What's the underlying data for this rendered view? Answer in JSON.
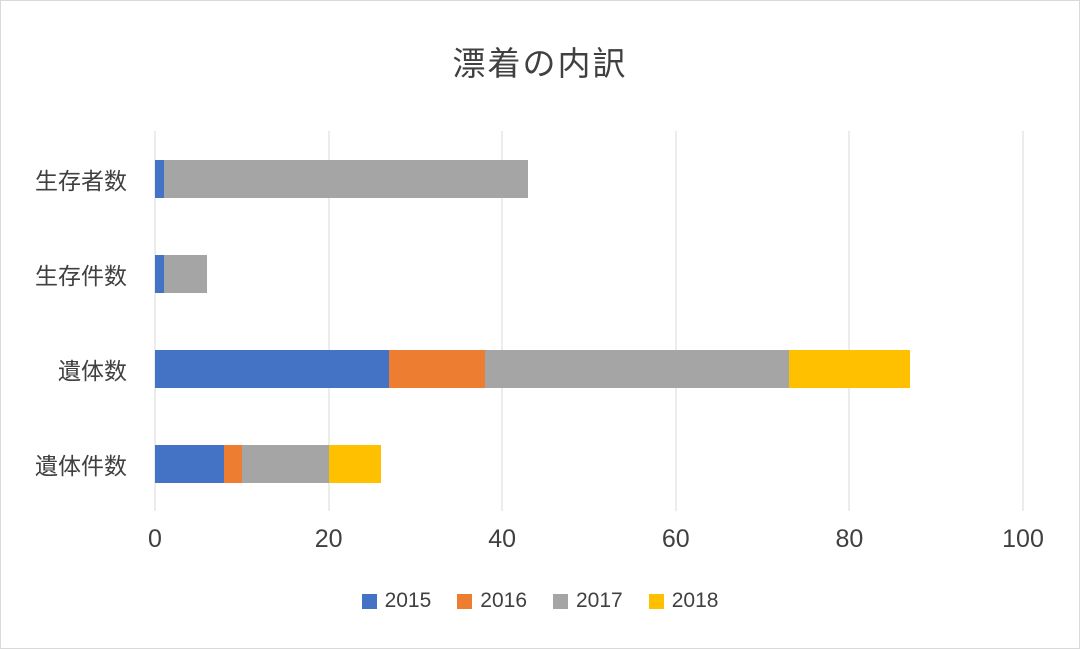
{
  "chart_data": {
    "type": "bar",
    "orientation": "horizontal",
    "stacked": true,
    "title": "漂着の内訳",
    "categories": [
      "生存者数",
      "生存件数",
      "遺体数",
      "遺体件数"
    ],
    "series": [
      {
        "name": "2015",
        "color": "#4472C4",
        "values": [
          1,
          1,
          27,
          8
        ]
      },
      {
        "name": "2016",
        "color": "#ED7D31",
        "values": [
          0,
          0,
          11,
          2
        ]
      },
      {
        "name": "2017",
        "color": "#A5A5A5",
        "values": [
          42,
          5,
          35,
          10
        ]
      },
      {
        "name": "2018",
        "color": "#FFC000",
        "values": [
          0,
          0,
          14,
          6
        ]
      }
    ],
    "xlim": [
      0,
      100
    ],
    "x_ticks": [
      0,
      20,
      40,
      60,
      80,
      100
    ],
    "grid": true,
    "legend_position": "bottom"
  }
}
